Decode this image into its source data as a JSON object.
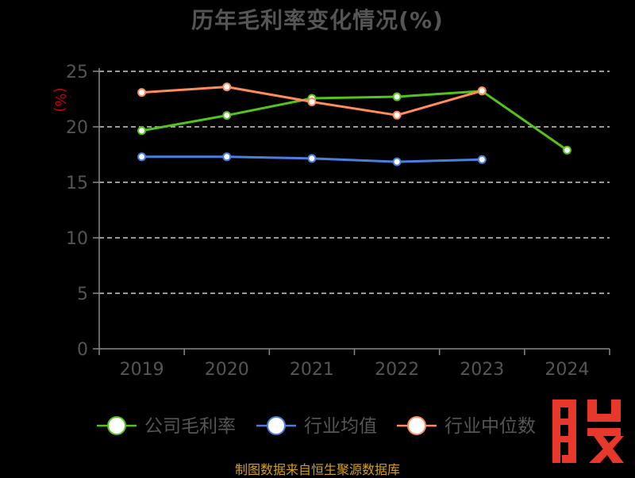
{
  "title": "历年毛利率变化情况(%)",
  "footer": "制图数据来自恒生聚源数据库",
  "watermark_char": "股",
  "colors": {
    "background": "#000000",
    "text": "#555555",
    "axis": "#888888",
    "grid": "#cccccc",
    "unit": "#cc0000",
    "watermark": "#e8372b",
    "footer": "#d4a017"
  },
  "chart_data": {
    "type": "line",
    "ylabel": "(%)",
    "xlabel": "",
    "categories": [
      "2019",
      "2020",
      "2021",
      "2022",
      "2023",
      "2024"
    ],
    "ylim": [
      0,
      25
    ],
    "yticks": [
      0,
      5,
      10,
      15,
      20,
      25
    ],
    "grid": true,
    "legend_position": "bottom",
    "series": [
      {
        "name": "公司毛利率",
        "color": "#52c41a",
        "values": [
          19.65,
          21.03,
          22.57,
          22.71,
          23.22,
          17.9
        ]
      },
      {
        "name": "行业均值",
        "color": "#4a7fe0",
        "values": [
          17.3,
          17.3,
          17.15,
          16.85,
          17.05,
          null
        ]
      },
      {
        "name": "行业中位数",
        "color": "#ff8c5a",
        "values": [
          23.1,
          23.6,
          22.25,
          21.05,
          23.25,
          null
        ]
      }
    ]
  }
}
